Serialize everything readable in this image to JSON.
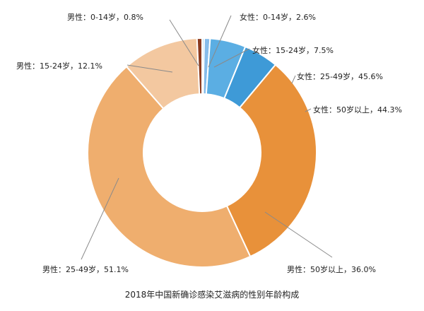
{
  "chart_data": {
    "type": "pie",
    "title": "2018年中国新确诊感染艾滋病的性别年龄构成",
    "slices": [
      {
        "label": "女性：0-14岁，2.6%",
        "value": 0.29,
        "color": "#A9D6F4"
      },
      {
        "label": "女性：15-24岁，7.5%",
        "value": 0.83,
        "color": "#86BCEA"
      },
      {
        "label": "女性：25-49岁，45.6%",
        "value": 5.05,
        "color": "#5BAEE3"
      },
      {
        "label": "女性：50岁以上，44.3%",
        "value": 4.9,
        "color": "#3E9AD7"
      },
      {
        "label": "男性：50岁以上，36.0%",
        "value": 32.01,
        "color": "#E8913A"
      },
      {
        "label": "男性：25-49岁，51.1%",
        "value": 45.44,
        "color": "#EFAE6E"
      },
      {
        "label": "男性：15-24岁，12.1%",
        "value": 10.76,
        "color": "#F3C8A0"
      },
      {
        "label": "男性：0-14岁，0.8%",
        "value": 0.71,
        "color": "#8B3A1E"
      }
    ]
  }
}
